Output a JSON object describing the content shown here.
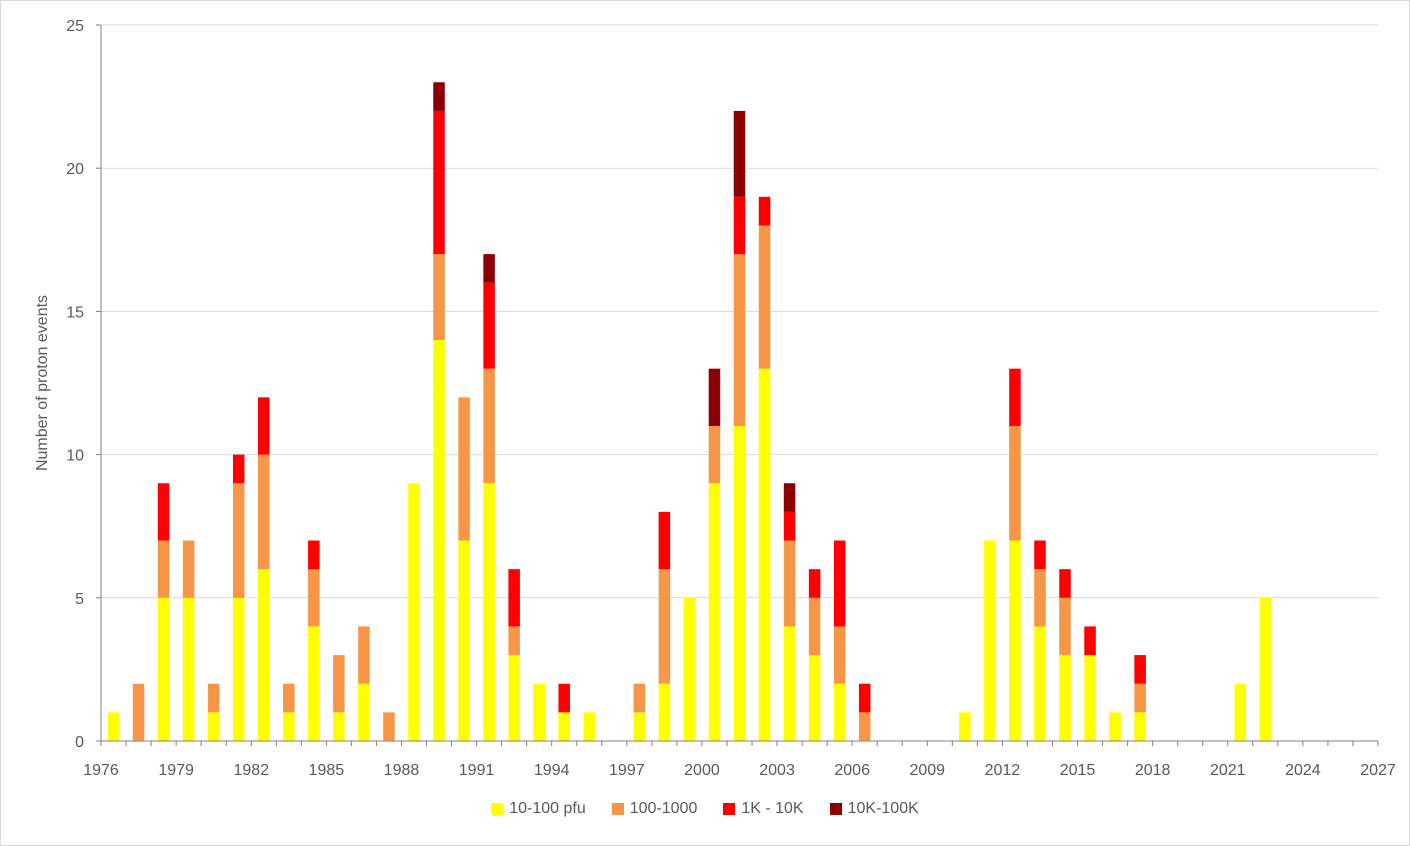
{
  "chart_data": {
    "type": "bar",
    "stacked": true,
    "title": "",
    "xlabel": "",
    "ylabel": "Number of proton events",
    "ylim": [
      0,
      25
    ],
    "yticks": [
      0,
      5,
      10,
      15,
      20,
      25
    ],
    "xlim": [
      1976,
      2027
    ],
    "xticks": [
      1976,
      1979,
      1982,
      1985,
      1988,
      1991,
      1994,
      1997,
      2000,
      2003,
      2006,
      2009,
      2012,
      2015,
      2018,
      2021,
      2024,
      2027
    ],
    "grid": true,
    "legend_position": "bottom",
    "categories": [
      1976,
      1977,
      1978,
      1979,
      1980,
      1981,
      1982,
      1983,
      1984,
      1985,
      1986,
      1987,
      1988,
      1989,
      1990,
      1991,
      1992,
      1993,
      1994,
      1995,
      1996,
      1997,
      1998,
      1999,
      2000,
      2001,
      2002,
      2003,
      2004,
      2005,
      2006,
      2007,
      2008,
      2009,
      2010,
      2011,
      2012,
      2013,
      2014,
      2015,
      2016,
      2017,
      2018,
      2019,
      2020,
      2021,
      2022,
      2023,
      2024,
      2025,
      2026
    ],
    "series": [
      {
        "name": "10-100 pfu",
        "color": "#ffff00",
        "values": [
          1,
          0,
          5,
          5,
          1,
          5,
          6,
          1,
          4,
          1,
          2,
          0,
          9,
          14,
          7,
          9,
          3,
          2,
          1,
          1,
          0,
          1,
          2,
          5,
          9,
          11,
          13,
          4,
          3,
          2,
          0,
          0,
          0,
          0,
          1,
          7,
          7,
          4,
          3,
          3,
          1,
          1,
          0,
          0,
          0,
          2,
          5,
          0,
          0,
          0,
          0
        ]
      },
      {
        "name": "100-1000",
        "color": "#f79646",
        "values": [
          0,
          2,
          2,
          2,
          1,
          4,
          4,
          1,
          2,
          2,
          2,
          1,
          0,
          3,
          5,
          4,
          1,
          0,
          0,
          0,
          0,
          1,
          4,
          0,
          2,
          6,
          5,
          3,
          2,
          2,
          1,
          0,
          0,
          0,
          0,
          0,
          4,
          2,
          2,
          0,
          0,
          1,
          0,
          0,
          0,
          0,
          0,
          0,
          0,
          0,
          0
        ]
      },
      {
        "name": "1K - 10K",
        "color": "#ff0000",
        "values": [
          0,
          0,
          2,
          0,
          0,
          1,
          2,
          0,
          1,
          0,
          0,
          0,
          0,
          5,
          0,
          3,
          2,
          0,
          1,
          0,
          0,
          0,
          2,
          0,
          0,
          2,
          1,
          1,
          1,
          3,
          1,
          0,
          0,
          0,
          0,
          0,
          2,
          1,
          1,
          1,
          0,
          1,
          0,
          0,
          0,
          0,
          0,
          0,
          0,
          0,
          0
        ]
      },
      {
        "name": "10K-100K",
        "color": "#8b0000",
        "values": [
          0,
          0,
          0,
          0,
          0,
          0,
          0,
          0,
          0,
          0,
          0,
          0,
          0,
          1,
          0,
          1,
          0,
          0,
          0,
          0,
          0,
          0,
          0,
          0,
          2,
          3,
          0,
          1,
          0,
          0,
          0,
          0,
          0,
          0,
          0,
          0,
          0,
          0,
          0,
          0,
          0,
          0,
          0,
          0,
          0,
          0,
          0,
          0,
          0,
          0,
          0
        ]
      }
    ]
  }
}
